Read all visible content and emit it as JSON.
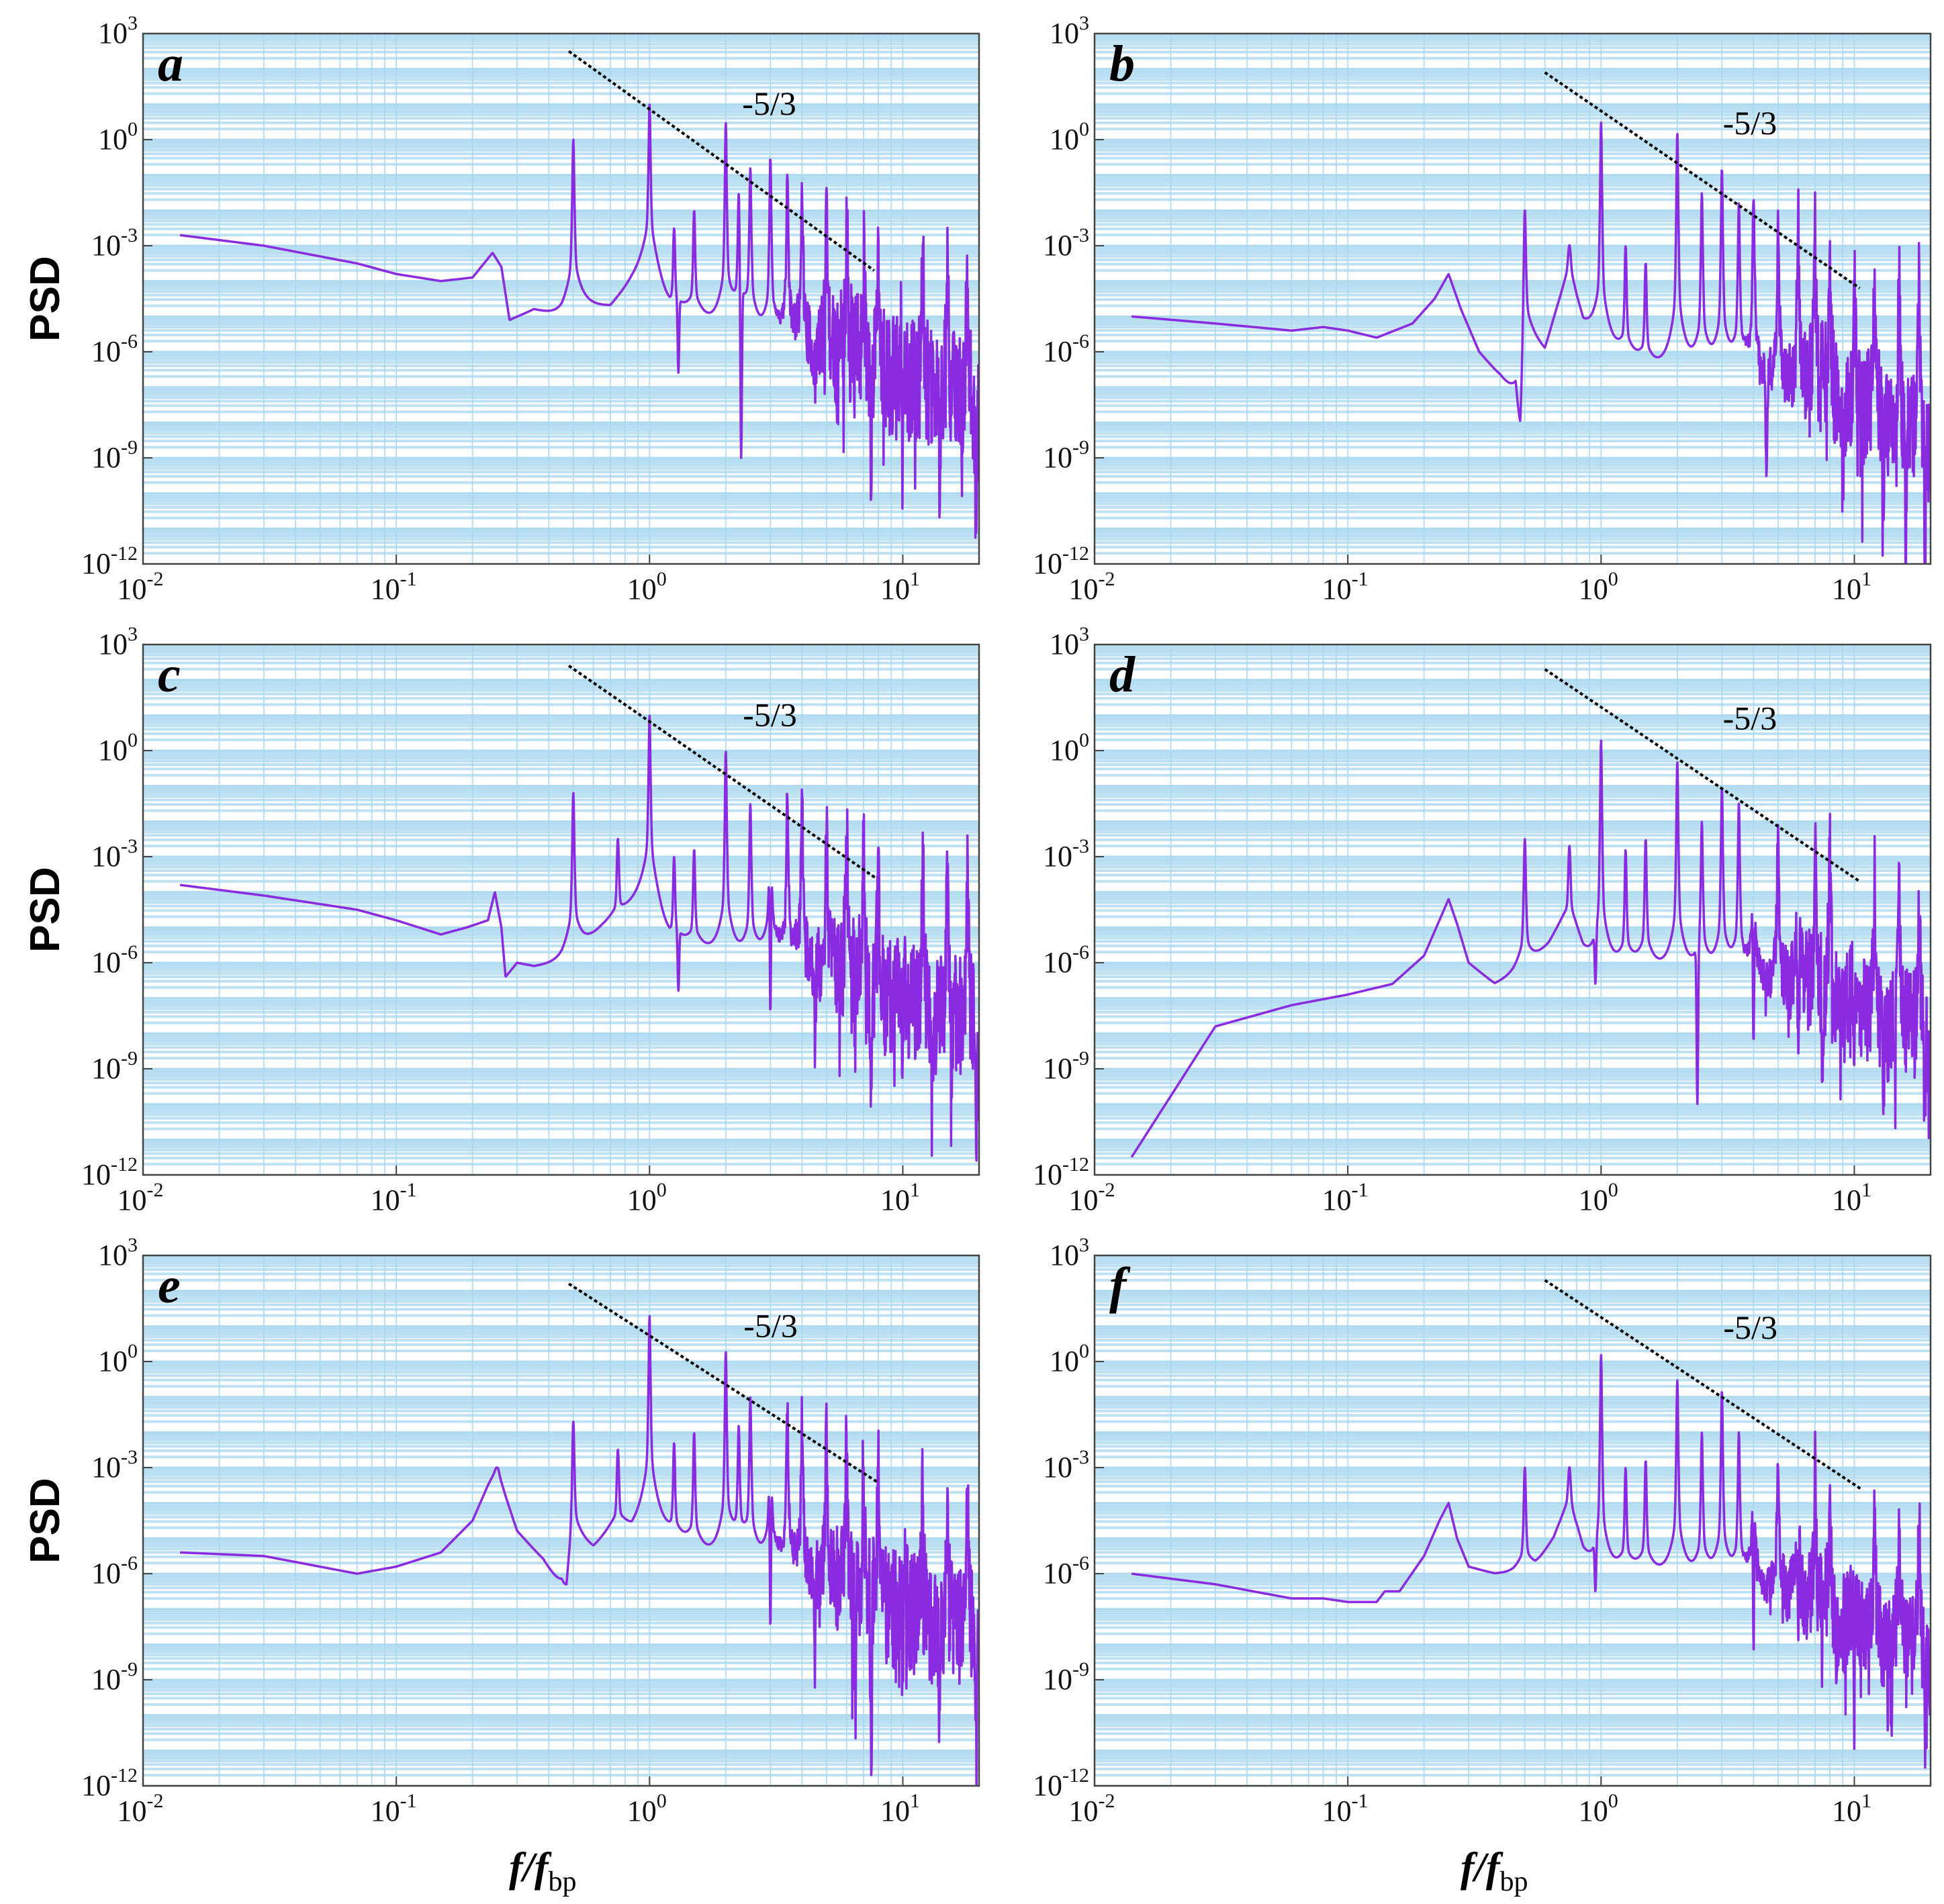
{
  "figure": {
    "ylabel": "PSD",
    "xlabel": {
      "main": "f/f",
      "sub": "bp"
    },
    "slope_label": "-5/3",
    "x_ticks": [
      {
        "base": "10",
        "exp": "-2"
      },
      {
        "base": "10",
        "exp": "-1"
      },
      {
        "base": "10",
        "exp": "0"
      },
      {
        "base": "10",
        "exp": "1"
      }
    ],
    "y_ticks": [
      {
        "base": "10",
        "exp": "3"
      },
      {
        "base": "10",
        "exp": "0"
      },
      {
        "base": "10",
        "exp": "-3"
      },
      {
        "base": "10",
        "exp": "-6"
      },
      {
        "base": "10",
        "exp": "-9"
      },
      {
        "base": "10",
        "exp": "-12"
      }
    ]
  },
  "colors": {
    "psd_line": "#8a2be2",
    "grid": "#a8d8f0",
    "plot_bg": "#ffffff",
    "slope_line": "#000000"
  },
  "chart_data": [
    {
      "panel": "a",
      "type": "line",
      "x_scale": "log",
      "y_scale": "log",
      "xlim": [
        0.01,
        20
      ],
      "ylim": [
        1e-12,
        1000
      ],
      "grid": true,
      "baseline": [
        [
          0.014,
          -2.7
        ],
        [
          0.03,
          -3.0
        ],
        [
          0.07,
          -3.5
        ],
        [
          0.1,
          -3.8
        ],
        [
          0.15,
          -4.0
        ],
        [
          0.2,
          -3.9
        ],
        [
          0.24,
          -3.2
        ],
        [
          0.26,
          -3.6
        ],
        [
          0.28,
          -5.1
        ],
        [
          0.35,
          -4.8
        ],
        [
          0.45,
          -5.0
        ],
        [
          0.52,
          -4.7
        ],
        [
          0.7,
          -4.7
        ],
        [
          0.85,
          -4.0
        ],
        [
          1.0,
          -3.5
        ],
        [
          1.2,
          -4.8
        ],
        [
          1.5,
          -5.0
        ],
        [
          2.0,
          -5.6
        ],
        [
          3,
          -6.2
        ],
        [
          5,
          -6.8
        ],
        [
          8,
          -7.3
        ],
        [
          12,
          -7.8
        ],
        [
          20,
          -8.3
        ]
      ],
      "peaks": [
        [
          0.5,
          0.0
        ],
        [
          1.0,
          1.0
        ],
        [
          1.25,
          -2.5
        ],
        [
          1.5,
          -2.0
        ],
        [
          2.0,
          0.5
        ],
        [
          2.25,
          -1.5
        ],
        [
          2.5,
          -0.8
        ],
        [
          3.0,
          -0.5
        ],
        [
          3.5,
          -1.0
        ],
        [
          4.0,
          -1.2
        ],
        [
          5.0,
          -1.5
        ],
        [
          6.0,
          -2.0
        ],
        [
          7.0,
          -2.5
        ],
        [
          8.0,
          -2.8
        ],
        [
          10.0,
          -3.0
        ],
        [
          12.0,
          -3.3
        ],
        [
          15.0,
          -3.2
        ],
        [
          18.0,
          -3.5
        ]
      ],
      "dips": [
        [
          1.3,
          -6.6
        ],
        [
          2.3,
          -9.0
        ],
        [
          4.5,
          -7.0
        ],
        [
          7.5,
          -9.5
        ],
        [
          10,
          -10.0
        ],
        [
          14,
          -9.8
        ],
        [
          19.5,
          -11.3
        ]
      ],
      "noise": {
        "start": 3.0,
        "amplitude": 1.8,
        "seed": 11
      },
      "slope_line": {
        "x": [
          0.48,
          7.7
        ],
        "y": [
          2.5,
          -3.7
        ]
      }
    },
    {
      "panel": "b",
      "type": "line",
      "x_scale": "log",
      "y_scale": "log",
      "xlim": [
        0.01,
        20
      ],
      "ylim": [
        1e-12,
        1000
      ],
      "grid": true,
      "baseline": [
        [
          0.014,
          -5.0
        ],
        [
          0.03,
          -5.2
        ],
        [
          0.06,
          -5.4
        ],
        [
          0.08,
          -5.3
        ],
        [
          0.1,
          -5.4
        ],
        [
          0.13,
          -5.6
        ],
        [
          0.18,
          -5.2
        ],
        [
          0.22,
          -4.5
        ],
        [
          0.25,
          -3.8
        ],
        [
          0.28,
          -4.8
        ],
        [
          0.33,
          -6.0
        ],
        [
          0.4,
          -6.7
        ],
        [
          0.46,
          -7.4
        ],
        [
          0.48,
          -9.7
        ],
        [
          0.5,
          -5.5
        ],
        [
          0.6,
          -6.0
        ],
        [
          0.75,
          -3.5
        ],
        [
          0.85,
          -5.3
        ],
        [
          1.0,
          -6.0
        ],
        [
          1.3,
          -6.3
        ],
        [
          1.6,
          -6.5
        ],
        [
          2,
          -6.6
        ],
        [
          3,
          -7.0
        ],
        [
          5,
          -7.5
        ],
        [
          8,
          -8.0
        ],
        [
          12,
          -8.5
        ],
        [
          20,
          -9.0
        ]
      ],
      "peaks": [
        [
          0.5,
          -2.0
        ],
        [
          0.75,
          -3.0
        ],
        [
          1.0,
          0.5
        ],
        [
          1.25,
          -3.0
        ],
        [
          1.5,
          -3.5
        ],
        [
          2.0,
          0.2
        ],
        [
          2.5,
          -1.5
        ],
        [
          3.0,
          -0.8
        ],
        [
          3.5,
          -1.8
        ],
        [
          4.0,
          -1.5
        ],
        [
          5.0,
          -2.2
        ],
        [
          6.0,
          -2.5
        ],
        [
          7.0,
          -3.0
        ],
        [
          8.0,
          -3.2
        ],
        [
          10.0,
          -4.0
        ],
        [
          12.0,
          -3.8
        ],
        [
          15.0,
          -4.2
        ],
        [
          18.0,
          -4.5
        ]
      ],
      "dips": [
        [
          4.5,
          -9.8
        ],
        [
          9,
          -9.2
        ],
        [
          13,
          -11.0
        ],
        [
          16,
          -11.5
        ],
        [
          19,
          -11.9
        ]
      ],
      "noise": {
        "start": 3.5,
        "amplitude": 1.6,
        "seed": 23
      },
      "slope_line": {
        "x": [
          0.6,
          10.5
        ],
        "y": [
          1.9,
          -4.2
        ]
      }
    },
    {
      "panel": "c",
      "type": "line",
      "x_scale": "log",
      "y_scale": "log",
      "xlim": [
        0.01,
        20
      ],
      "ylim": [
        1e-12,
        1000
      ],
      "grid": true,
      "baseline": [
        [
          0.014,
          -3.8
        ],
        [
          0.03,
          -4.1
        ],
        [
          0.07,
          -4.5
        ],
        [
          0.1,
          -4.8
        ],
        [
          0.15,
          -5.2
        ],
        [
          0.19,
          -5.0
        ],
        [
          0.23,
          -4.8
        ],
        [
          0.245,
          -4.0
        ],
        [
          0.26,
          -5.0
        ],
        [
          0.27,
          -6.4
        ],
        [
          0.3,
          -6.0
        ],
        [
          0.35,
          -6.1
        ],
        [
          0.45,
          -6.0
        ],
        [
          0.55,
          -5.5
        ],
        [
          0.65,
          -5.0
        ],
        [
          0.8,
          -4.5
        ],
        [
          1.0,
          -4.0
        ],
        [
          1.2,
          -5.4
        ],
        [
          1.5,
          -5.6
        ],
        [
          2,
          -6.0
        ],
        [
          3,
          -6.4
        ],
        [
          5,
          -7.0
        ],
        [
          8,
          -7.5
        ],
        [
          12,
          -8.0
        ],
        [
          20,
          -8.5
        ]
      ],
      "peaks": [
        [
          0.5,
          -1.2
        ],
        [
          0.75,
          -2.5
        ],
        [
          1.0,
          1.0
        ],
        [
          1.25,
          -3.0
        ],
        [
          1.5,
          -2.8
        ],
        [
          2.0,
          0.0
        ],
        [
          2.5,
          -1.5
        ],
        [
          3.0,
          -0.8
        ],
        [
          3.5,
          -1.2
        ],
        [
          4.0,
          -1.5
        ],
        [
          5.0,
          -2.0
        ],
        [
          6.0,
          -2.5
        ],
        [
          7.0,
          -3.0
        ],
        [
          8.0,
          -3.5
        ],
        [
          10.0,
          -3.5
        ],
        [
          12.0,
          -3.3
        ],
        [
          15.0,
          -3.5
        ],
        [
          18.0,
          -3.8
        ]
      ],
      "dips": [
        [
          1.3,
          -6.8
        ],
        [
          3,
          -7.5
        ],
        [
          4.5,
          -8.0
        ],
        [
          6.5,
          -8.5
        ],
        [
          7.5,
          -10.0
        ],
        [
          10,
          -10.0
        ],
        [
          13,
          -10.5
        ],
        [
          19.5,
          -10.9
        ]
      ],
      "noise": {
        "start": 3.0,
        "amplitude": 1.7,
        "seed": 37
      },
      "slope_line": {
        "x": [
          0.48,
          7.8
        ],
        "y": [
          2.4,
          -3.6
        ]
      }
    },
    {
      "panel": "d",
      "type": "line",
      "x_scale": "log",
      "y_scale": "log",
      "xlim": [
        0.01,
        20
      ],
      "ylim": [
        1e-12,
        1000
      ],
      "grid": true,
      "baseline": [
        [
          0.014,
          -11.5
        ],
        [
          0.03,
          -7.8
        ],
        [
          0.06,
          -7.2
        ],
        [
          0.1,
          -6.9
        ],
        [
          0.15,
          -6.6
        ],
        [
          0.2,
          -5.8
        ],
        [
          0.23,
          -4.8
        ],
        [
          0.25,
          -4.2
        ],
        [
          0.27,
          -4.9
        ],
        [
          0.3,
          -6.0
        ],
        [
          0.38,
          -6.6
        ],
        [
          0.45,
          -6.4
        ],
        [
          0.52,
          -6.1
        ],
        [
          0.62,
          -5.5
        ],
        [
          0.75,
          -4.5
        ],
        [
          0.85,
          -5.8
        ],
        [
          0.95,
          -6.4
        ],
        [
          1.1,
          -6.3
        ],
        [
          1.5,
          -6.2
        ],
        [
          2,
          -6.4
        ],
        [
          3,
          -6.8
        ],
        [
          5,
          -7.3
        ],
        [
          8,
          -7.8
        ],
        [
          12,
          -8.3
        ],
        [
          20,
          -8.8
        ]
      ],
      "peaks": [
        [
          0.5,
          -2.5
        ],
        [
          0.75,
          -2.7
        ],
        [
          1.0,
          0.3
        ],
        [
          1.25,
          -2.8
        ],
        [
          1.5,
          -2.5
        ],
        [
          2.0,
          -0.3
        ],
        [
          2.5,
          -2.0
        ],
        [
          3.0,
          -1.0
        ],
        [
          3.5,
          -1.5
        ],
        [
          4.0,
          -1.8
        ],
        [
          5.0,
          -2.2
        ],
        [
          6.0,
          -2.8
        ],
        [
          7.0,
          -3.0
        ],
        [
          8.0,
          -3.2
        ],
        [
          10.0,
          -4.0
        ],
        [
          12.0,
          -3.8
        ],
        [
          15.0,
          -3.9
        ],
        [
          18.0,
          -4.2
        ]
      ],
      "dips": [
        [
          0.95,
          -6.6
        ],
        [
          2.4,
          -10.0
        ],
        [
          4,
          -8.5
        ],
        [
          6,
          -9.0
        ],
        [
          7.5,
          -9.5
        ],
        [
          10,
          -9.3
        ],
        [
          13,
          -9.8
        ],
        [
          19,
          -10.5
        ]
      ],
      "noise": {
        "start": 3.5,
        "amplitude": 1.6,
        "seed": 41
      },
      "slope_line": {
        "x": [
          0.6,
          10.5
        ],
        "y": [
          2.3,
          -3.7
        ]
      }
    },
    {
      "panel": "e",
      "type": "line",
      "x_scale": "log",
      "y_scale": "log",
      "xlim": [
        0.01,
        20
      ],
      "ylim": [
        1e-12,
        1000
      ],
      "grid": true,
      "baseline": [
        [
          0.014,
          -5.4
        ],
        [
          0.03,
          -5.5
        ],
        [
          0.07,
          -6.0
        ],
        [
          0.1,
          -5.8
        ],
        [
          0.15,
          -5.4
        ],
        [
          0.2,
          -4.5
        ],
        [
          0.23,
          -3.5
        ],
        [
          0.25,
          -3.0
        ],
        [
          0.27,
          -3.8
        ],
        [
          0.3,
          -4.8
        ],
        [
          0.38,
          -5.6
        ],
        [
          0.45,
          -6.5
        ],
        [
          0.47,
          -7.1
        ],
        [
          0.5,
          -5.0
        ],
        [
          0.6,
          -5.3
        ],
        [
          0.75,
          -4.5
        ],
        [
          0.85,
          -4.8
        ],
        [
          1.0,
          -4.3
        ],
        [
          1.2,
          -5.0
        ],
        [
          1.5,
          -5.4
        ],
        [
          2,
          -5.8
        ],
        [
          3,
          -6.3
        ],
        [
          5,
          -6.9
        ],
        [
          8,
          -7.4
        ],
        [
          12,
          -8.0
        ],
        [
          20,
          -8.6
        ]
      ],
      "peaks": [
        [
          0.25,
          -3.0
        ],
        [
          0.5,
          -1.7
        ],
        [
          0.75,
          -2.5
        ],
        [
          1.0,
          1.3
        ],
        [
          1.25,
          -2.3
        ],
        [
          1.5,
          -2.0
        ],
        [
          2.0,
          0.3
        ],
        [
          2.25,
          -1.8
        ],
        [
          2.5,
          -1.0
        ],
        [
          3.0,
          -0.8
        ],
        [
          3.5,
          -1.3
        ],
        [
          4.0,
          -1.6
        ],
        [
          5.0,
          -2.0
        ],
        [
          6.0,
          -2.5
        ],
        [
          7.0,
          -2.9
        ],
        [
          8.0,
          -3.3
        ],
        [
          10.0,
          -3.5
        ],
        [
          12.0,
          -3.6
        ],
        [
          15.0,
          -3.7
        ],
        [
          18.0,
          -4.0
        ]
      ],
      "dips": [
        [
          3,
          -7.6
        ],
        [
          4.5,
          -8.5
        ],
        [
          6.5,
          -10.0
        ],
        [
          7.5,
          -11.0
        ],
        [
          10,
          -10.5
        ],
        [
          14,
          -10.5
        ],
        [
          19.5,
          -11.0
        ]
      ],
      "noise": {
        "start": 3.0,
        "amplitude": 1.7,
        "seed": 53
      },
      "slope_line": {
        "x": [
          0.48,
          7.9
        ],
        "y": [
          2.2,
          -3.4
        ]
      }
    },
    {
      "panel": "f",
      "type": "line",
      "x_scale": "log",
      "y_scale": "log",
      "xlim": [
        0.01,
        20
      ],
      "ylim": [
        1e-12,
        1000
      ],
      "grid": true,
      "baseline": [
        [
          0.014,
          -6.0
        ],
        [
          0.03,
          -6.3
        ],
        [
          0.06,
          -6.7
        ],
        [
          0.08,
          -6.7
        ],
        [
          0.1,
          -6.8
        ],
        [
          0.13,
          -6.8
        ],
        [
          0.14,
          -6.5
        ],
        [
          0.16,
          -6.5
        ],
        [
          0.2,
          -5.5
        ],
        [
          0.23,
          -4.5
        ],
        [
          0.25,
          -4.0
        ],
        [
          0.27,
          -5.0
        ],
        [
          0.3,
          -5.8
        ],
        [
          0.38,
          -6.0
        ],
        [
          0.45,
          -6.0
        ],
        [
          0.55,
          -5.8
        ],
        [
          0.65,
          -5.0
        ],
        [
          0.75,
          -3.8
        ],
        [
          0.85,
          -5.5
        ],
        [
          0.95,
          -6.3
        ],
        [
          1.2,
          -6.0
        ],
        [
          1.5,
          -6.0
        ],
        [
          2,
          -6.2
        ],
        [
          3,
          -6.6
        ],
        [
          5,
          -7.2
        ],
        [
          8,
          -7.8
        ],
        [
          12,
          -8.3
        ],
        [
          20,
          -9.0
        ]
      ],
      "peaks": [
        [
          0.5,
          -3.0
        ],
        [
          0.75,
          -3.0
        ],
        [
          1.0,
          0.2
        ],
        [
          1.25,
          -3.0
        ],
        [
          1.5,
          -2.8
        ],
        [
          2.0,
          -0.5
        ],
        [
          2.5,
          -2.0
        ],
        [
          3.0,
          -0.8
        ],
        [
          3.5,
          -2.0
        ],
        [
          4.0,
          -1.5
        ],
        [
          5.0,
          -2.5
        ],
        [
          6.0,
          -3.0
        ],
        [
          7.0,
          -3.3
        ],
        [
          8.0,
          -3.6
        ],
        [
          10.0,
          -4.0
        ],
        [
          12.0,
          -4.2
        ],
        [
          15.0,
          -4.3
        ],
        [
          18.0,
          -4.6
        ]
      ],
      "dips": [
        [
          0.95,
          -6.5
        ],
        [
          4,
          -8.0
        ],
        [
          6,
          -8.3
        ],
        [
          8.5,
          -8.8
        ],
        [
          10,
          -9.7
        ],
        [
          14,
          -9.5
        ],
        [
          19,
          -10.2
        ]
      ],
      "noise": {
        "start": 3.5,
        "amplitude": 1.4,
        "seed": 67
      },
      "slope_line": {
        "x": [
          0.6,
          10.6
        ],
        "y": [
          2.3,
          -3.6
        ]
      }
    }
  ]
}
